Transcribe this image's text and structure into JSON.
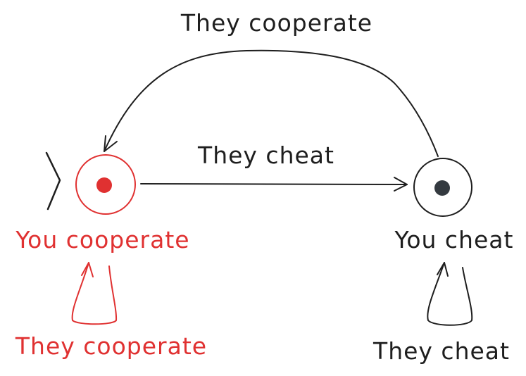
{
  "nodes": [
    {
      "id": "you-cooperate",
      "label": "You cooperate",
      "color": "#e03131",
      "initial": true
    },
    {
      "id": "you-cheat",
      "label": "You cheat",
      "color": "#1e1e1e",
      "initial": false
    }
  ],
  "edges": [
    {
      "id": "coop-to-cheat",
      "label": "They cheat"
    },
    {
      "id": "cheat-to-coop",
      "label": "They cooperate"
    },
    {
      "id": "coop-self-loop",
      "label": "They cooperate"
    },
    {
      "id": "cheat-self-loop",
      "label": "They cheat"
    }
  ],
  "colors": {
    "accent": "#e03131",
    "ink": "#1e1e1e",
    "dot": "#343a40"
  }
}
